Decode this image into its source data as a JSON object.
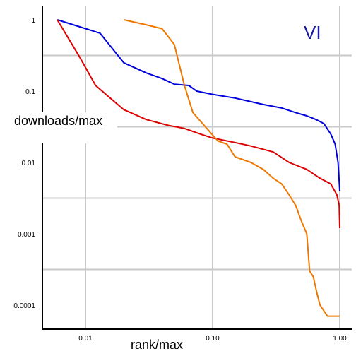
{
  "chart_data": {
    "type": "line",
    "panel_label": "VI",
    "xlabel": "rank/max",
    "ylabel": "downloads/max",
    "x_scale": "log",
    "y_scale": "log",
    "xlim": [
      0.005,
      1.0
    ],
    "ylim": [
      5e-05,
      1.2
    ],
    "grid": true,
    "x_ticks": [
      {
        "value": 0.01,
        "label": "0.01"
      },
      {
        "value": 0.1,
        "label": "0.10"
      },
      {
        "value": 1.0,
        "label": "1.00"
      }
    ],
    "y_ticks": [
      {
        "value": 1,
        "label": "1"
      },
      {
        "value": 0.1,
        "label": "0.1"
      },
      {
        "value": 0.01,
        "label": "0.01"
      },
      {
        "value": 0.001,
        "label": "0.001"
      },
      {
        "value": 0.0001,
        "label": "0.0001"
      }
    ],
    "series": [
      {
        "color": "#0000dd",
        "points": [
          [
            0.006,
            1.0
          ],
          [
            0.013,
            0.65
          ],
          [
            0.02,
            0.25
          ],
          [
            0.03,
            0.18
          ],
          [
            0.04,
            0.15
          ],
          [
            0.05,
            0.125
          ],
          [
            0.065,
            0.12
          ],
          [
            0.075,
            0.1
          ],
          [
            0.1,
            0.09
          ],
          [
            0.15,
            0.08
          ],
          [
            0.25,
            0.065
          ],
          [
            0.35,
            0.058
          ],
          [
            0.45,
            0.05
          ],
          [
            0.55,
            0.045
          ],
          [
            0.65,
            0.04
          ],
          [
            0.75,
            0.035
          ],
          [
            0.85,
            0.025
          ],
          [
            0.92,
            0.018
          ],
          [
            0.97,
            0.01
          ],
          [
            1.0,
            0.004
          ]
        ]
      },
      {
        "color": "#dd0000",
        "points": [
          [
            0.006,
            1.0
          ],
          [
            0.009,
            0.3
          ],
          [
            0.012,
            0.12
          ],
          [
            0.02,
            0.055
          ],
          [
            0.03,
            0.04
          ],
          [
            0.045,
            0.033
          ],
          [
            0.06,
            0.03
          ],
          [
            0.08,
            0.025
          ],
          [
            0.1,
            0.022
          ],
          [
            0.15,
            0.019
          ],
          [
            0.2,
            0.017
          ],
          [
            0.3,
            0.014
          ],
          [
            0.4,
            0.01
          ],
          [
            0.55,
            0.008
          ],
          [
            0.7,
            0.006
          ],
          [
            0.85,
            0.005
          ],
          [
            0.95,
            0.0035
          ],
          [
            0.99,
            0.0025
          ],
          [
            1.0,
            0.0012
          ]
        ]
      },
      {
        "color": "#ee7700",
        "points": [
          [
            0.02,
            1.0
          ],
          [
            0.03,
            0.85
          ],
          [
            0.04,
            0.75
          ],
          [
            0.05,
            0.45
          ],
          [
            0.06,
            0.12
          ],
          [
            0.07,
            0.05
          ],
          [
            0.09,
            0.03
          ],
          [
            0.11,
            0.02
          ],
          [
            0.13,
            0.018
          ],
          [
            0.15,
            0.012
          ],
          [
            0.2,
            0.01
          ],
          [
            0.25,
            0.008
          ],
          [
            0.3,
            0.006
          ],
          [
            0.35,
            0.005
          ],
          [
            0.4,
            0.0035
          ],
          [
            0.45,
            0.0025
          ],
          [
            0.5,
            0.0015
          ],
          [
            0.55,
            0.001
          ],
          [
            0.58,
            0.0003
          ],
          [
            0.62,
            0.00025
          ],
          [
            0.66,
            0.00015
          ],
          [
            0.7,
            0.0001
          ],
          [
            0.8,
            7e-05
          ],
          [
            1.0,
            7e-05
          ]
        ]
      }
    ]
  }
}
